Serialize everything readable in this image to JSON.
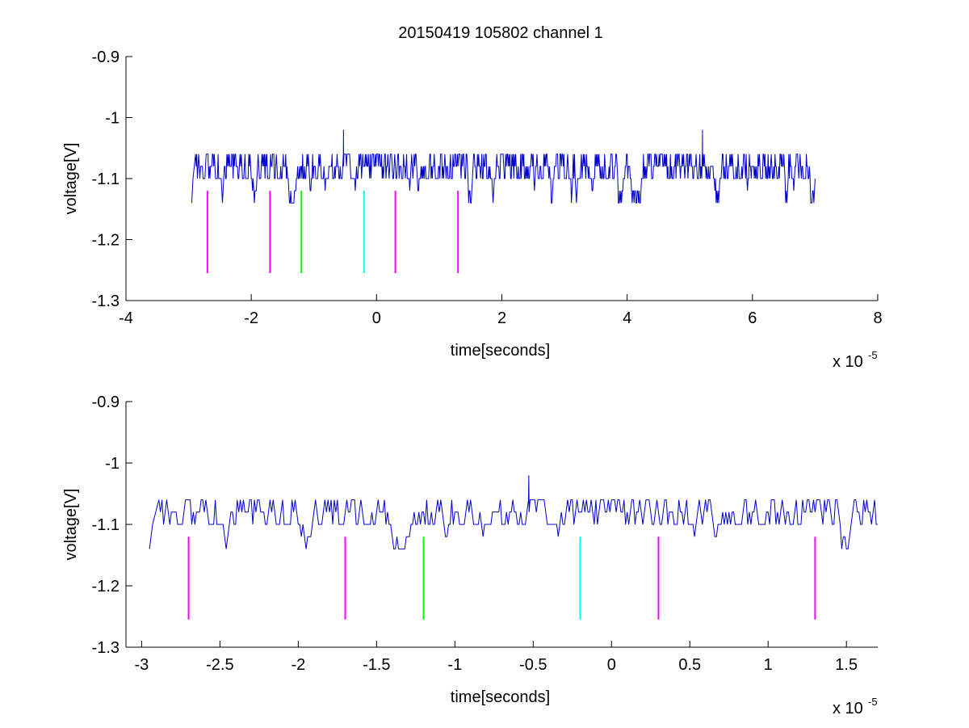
{
  "figure": {
    "title": "20150419 105802 channel 1"
  },
  "chart_data": [
    {
      "type": "line",
      "title": "20150419 105802 channel 1",
      "xlabel": "time[seconds]",
      "ylabel": "voltage[V]",
      "x_multiplier_label": "x 10",
      "x_multiplier_exponent": "-5",
      "xlim": [
        -4e-05,
        8e-05
      ],
      "ylim": [
        -1.3,
        -0.9
      ],
      "xticks": [
        -4e-05,
        -2e-05,
        0,
        2e-05,
        4e-05,
        6e-05,
        8e-05
      ],
      "xtick_labels": [
        "-4",
        "-2",
        "0",
        "2",
        "4",
        "6",
        "8"
      ],
      "yticks": [
        -1.3,
        -1.2,
        -1.1,
        -1.0,
        -0.9
      ],
      "ytick_labels": [
        "-1.3",
        "-1.2",
        "-1.1",
        "-1",
        "-0.9"
      ],
      "grid": false,
      "signal": {
        "color": "#0000cc",
        "x_start": -2.95e-05,
        "x_end": 7e-05,
        "baseline": -1.1,
        "levels": [
          -1.06,
          -1.08,
          -1.1,
          -1.12,
          -1.14
        ],
        "spikes": [
          {
            "x": -5.3e-06,
            "y": -1.02
          },
          {
            "x": 5.2e-05,
            "y": -1.02
          }
        ]
      },
      "markers": [
        {
          "x": -2.7e-05,
          "y_top": -1.12,
          "y_bottom": -1.255,
          "color": "#ff00ff"
        },
        {
          "x": -1.7e-05,
          "y_top": -1.12,
          "y_bottom": -1.255,
          "color": "#ff00ff"
        },
        {
          "x": -1.2e-05,
          "y_top": -1.12,
          "y_bottom": -1.255,
          "color": "#00ff00"
        },
        {
          "x": -2e-06,
          "y_top": -1.12,
          "y_bottom": -1.255,
          "color": "#00ffff"
        },
        {
          "x": 3e-06,
          "y_top": -1.12,
          "y_bottom": -1.255,
          "color": "#ff00ff"
        },
        {
          "x": 1.3e-05,
          "y_top": -1.12,
          "y_bottom": -1.255,
          "color": "#ff00ff"
        }
      ]
    },
    {
      "type": "line",
      "title": "",
      "xlabel": "time[seconds]",
      "ylabel": "voltage[V]",
      "x_multiplier_label": "x 10",
      "x_multiplier_exponent": "-5",
      "xlim": [
        -3.1e-05,
        1.7e-05
      ],
      "ylim": [
        -1.3,
        -0.9
      ],
      "xticks": [
        -3e-05,
        -2.5e-05,
        -2e-05,
        -1.5e-05,
        -1e-05,
        -5e-06,
        0,
        5e-06,
        1e-05,
        1.5e-05
      ],
      "xtick_labels": [
        "-3",
        "-2.5",
        "-2",
        "-1.5",
        "-1",
        "-0.5",
        "0",
        "0.5",
        "1",
        "1.5"
      ],
      "yticks": [
        -1.3,
        -1.2,
        -1.1,
        -1.0,
        -0.9
      ],
      "ytick_labels": [
        "-1.3",
        "-1.2",
        "-1.1",
        "-1",
        "-0.9"
      ],
      "grid": false,
      "signal": {
        "color": "#0000cc",
        "x_start": -2.95e-05,
        "x_end": 1.7e-05,
        "baseline": -1.1,
        "levels": [
          -1.06,
          -1.08,
          -1.1,
          -1.12,
          -1.14
        ],
        "spikes": [
          {
            "x": -5.3e-06,
            "y": -1.02
          }
        ]
      },
      "markers": [
        {
          "x": -2.7e-05,
          "y_top": -1.12,
          "y_bottom": -1.255,
          "color": "#ff00ff"
        },
        {
          "x": -1.7e-05,
          "y_top": -1.12,
          "y_bottom": -1.255,
          "color": "#ff00ff"
        },
        {
          "x": -1.2e-05,
          "y_top": -1.12,
          "y_bottom": -1.255,
          "color": "#00ff00"
        },
        {
          "x": -2e-06,
          "y_top": -1.12,
          "y_bottom": -1.255,
          "color": "#00ffff"
        },
        {
          "x": 3e-06,
          "y_top": -1.12,
          "y_bottom": -1.255,
          "color": "#ff00ff"
        },
        {
          "x": 1.3e-05,
          "y_top": -1.12,
          "y_bottom": -1.255,
          "color": "#ff00ff"
        }
      ]
    }
  ]
}
